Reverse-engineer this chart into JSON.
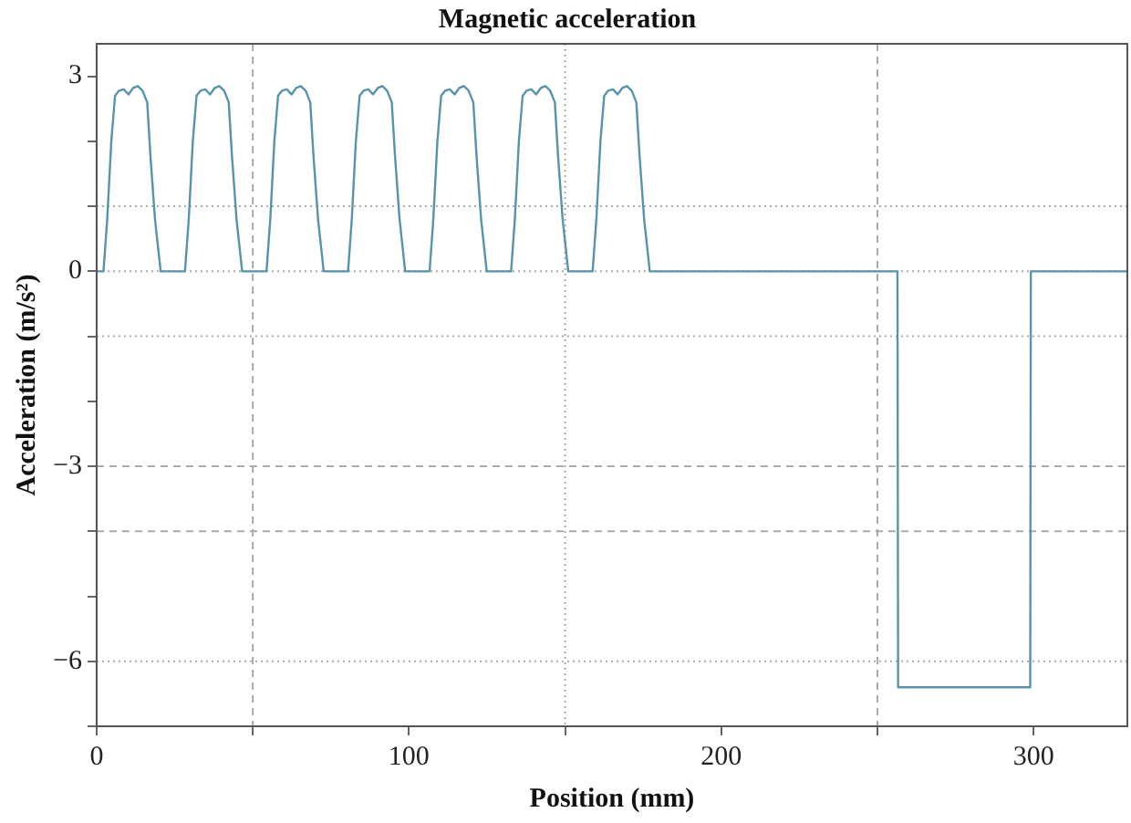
{
  "chart_data": {
    "type": "line",
    "title": "Magnetic acceleration",
    "xlabel": "Position (mm)",
    "ylabel": "Acceleration (m/s²)",
    "xlim": [
      0,
      330
    ],
    "ylim": [
      -7,
      3.5
    ],
    "xticks": [
      0,
      {
        "value": 50,
        "label": null
      },
      100,
      {
        "value": 150,
        "label": null
      },
      200,
      {
        "value": 250,
        "label": null
      },
      300
    ],
    "yticks": [
      {
        "value": -7,
        "label": null
      },
      -6,
      {
        "value": -5,
        "label": null
      },
      {
        "value": -4,
        "label": null
      },
      -3,
      {
        "value": -2,
        "label": null
      },
      {
        "value": -1,
        "label": null
      },
      0,
      {
        "value": 1,
        "label": null
      },
      {
        "value": 2,
        "label": null
      },
      3
    ],
    "grid": false,
    "ref_lines": [
      {
        "axis": "x",
        "value": 50,
        "line_style": "dashed",
        "color": "#aaaaaa"
      },
      {
        "axis": "x",
        "value": 150,
        "line_style": "dotted",
        "color": "#aaaaaa"
      },
      {
        "axis": "x",
        "value": 250,
        "line_style": "dashed",
        "color": "#aaaaaa"
      },
      {
        "axis": "y",
        "value": 1,
        "line_style": "dotted",
        "color": "#aaaaaa"
      },
      {
        "axis": "y",
        "value": 0,
        "line_style": "dotted",
        "color": "#aaaaaa"
      },
      {
        "axis": "y",
        "value": -1,
        "line_style": "dotted",
        "color": "#aaaaaa"
      },
      {
        "axis": "y",
        "value": -3,
        "line_style": "dashed",
        "color": "#aaaaaa"
      },
      {
        "axis": "y",
        "value": -4,
        "line_style": "dashed",
        "color": "#aaaaaa"
      },
      {
        "axis": "y",
        "value": -6,
        "line_style": "dotted",
        "color": "#aaaaaa"
      }
    ],
    "series": [
      {
        "color": "#5b93ab",
        "x": [
          0,
          2.2,
          3.4,
          4.7,
          5.9,
          7.2,
          8.7,
          10.2,
          11.7,
          13.2,
          14.7,
          16.2,
          17.2,
          18.7,
          20.5,
          28.3,
          29.5,
          30.8,
          32,
          33.3,
          34.8,
          36.3,
          37.8,
          39.3,
          40.8,
          42.3,
          43.3,
          44.8,
          46.6,
          54.4,
          55.6,
          56.9,
          58.1,
          59.4,
          60.9,
          62.4,
          63.9,
          65.4,
          66.9,
          68.4,
          69.4,
          70.9,
          72.7,
          80.5,
          81.7,
          83,
          84.2,
          85.5,
          87,
          88.5,
          90,
          91.5,
          93,
          94.5,
          95.5,
          97,
          98.8,
          106.6,
          107.8,
          109.1,
          110.3,
          111.6,
          113.1,
          114.6,
          116.1,
          117.6,
          119.1,
          120.6,
          121.6,
          123.1,
          124.9,
          132.7,
          133.9,
          135.2,
          136.4,
          137.7,
          139.2,
          140.7,
          142.2,
          143.7,
          145.2,
          146.7,
          147.7,
          149.2,
          151,
          158.8,
          160,
          161.3,
          162.5,
          163.8,
          165.3,
          166.8,
          168.3,
          169.8,
          171.3,
          172.8,
          173.8,
          175.3,
          177.1,
          256.4,
          256.6,
          298.9,
          299.1,
          330
        ],
        "values": [
          0,
          0,
          0.8,
          2,
          2.7,
          2.78,
          2.8,
          2.72,
          2.82,
          2.85,
          2.78,
          2.6,
          1.8,
          0.8,
          0,
          0,
          0.8,
          2,
          2.7,
          2.78,
          2.8,
          2.72,
          2.82,
          2.85,
          2.78,
          2.6,
          1.8,
          0.8,
          0,
          0,
          0.8,
          2,
          2.7,
          2.78,
          2.8,
          2.72,
          2.82,
          2.85,
          2.78,
          2.6,
          1.8,
          0.8,
          0,
          0,
          0.8,
          2,
          2.7,
          2.78,
          2.8,
          2.72,
          2.82,
          2.85,
          2.78,
          2.6,
          1.8,
          0.8,
          0,
          0,
          0.8,
          2,
          2.7,
          2.78,
          2.8,
          2.72,
          2.82,
          2.85,
          2.78,
          2.6,
          1.8,
          0.8,
          0,
          0,
          0.8,
          2,
          2.7,
          2.78,
          2.8,
          2.72,
          2.82,
          2.85,
          2.78,
          2.6,
          1.8,
          0.8,
          0,
          0,
          0.8,
          2,
          2.7,
          2.78,
          2.8,
          2.72,
          2.82,
          2.85,
          2.78,
          2.6,
          1.8,
          0.8,
          0,
          0,
          -6.4,
          -6.4,
          0,
          0
        ]
      }
    ]
  }
}
